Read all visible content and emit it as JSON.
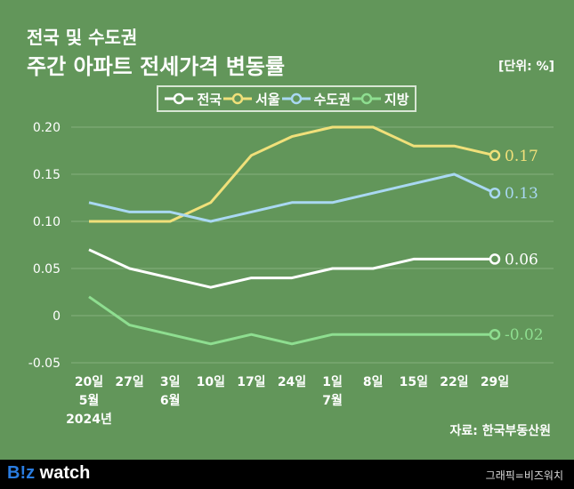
{
  "title_line1": "전국 및 수도권",
  "title_line2": "주간 아파트 전세가격 변동률",
  "unit": "[단위: %]",
  "source": "자료: 한국부동산원",
  "footer": {
    "logo_b": "B!z",
    "logo_rest": " watch",
    "credit": "그래픽=비즈워치"
  },
  "chart_data": {
    "type": "line",
    "categories": [
      "20일",
      "27일",
      "3일",
      "10일",
      "17일",
      "24일",
      "1일",
      "8일",
      "15일",
      "22일",
      "29일"
    ],
    "month_labels": {
      "0": "5월",
      "2": "6월",
      "6": "7월"
    },
    "year_label": "2024년",
    "ylim": [
      -0.05,
      0.2
    ],
    "yticks": [
      "0.20",
      "0.15",
      "0.10",
      "0.05",
      "0",
      "-0.05"
    ],
    "ytick_values": [
      0.2,
      0.15,
      0.1,
      0.05,
      0,
      -0.05
    ],
    "grid": true,
    "legend_placement": "top",
    "series": [
      {
        "name": "전국",
        "color": "#ffffff",
        "values": [
          0.07,
          0.05,
          0.04,
          0.03,
          0.04,
          0.04,
          0.05,
          0.05,
          0.06,
          0.06,
          0.06
        ],
        "end_label": "0.06"
      },
      {
        "name": "서울",
        "color": "#f0e07a",
        "values": [
          0.1,
          0.1,
          0.1,
          0.12,
          0.17,
          0.19,
          0.2,
          0.2,
          0.18,
          0.18,
          0.17
        ],
        "end_label": "0.17"
      },
      {
        "name": "수도권",
        "color": "#a9d8f2",
        "values": [
          0.12,
          0.11,
          0.11,
          0.1,
          0.11,
          0.12,
          0.12,
          0.13,
          0.14,
          0.15,
          0.13
        ],
        "end_label": "0.13"
      },
      {
        "name": "지방",
        "color": "#8ede90",
        "values": [
          0.02,
          -0.01,
          -0.02,
          -0.03,
          -0.02,
          -0.03,
          -0.02,
          -0.02,
          -0.02,
          -0.02,
          -0.02
        ],
        "end_label": "-0.02"
      }
    ]
  }
}
